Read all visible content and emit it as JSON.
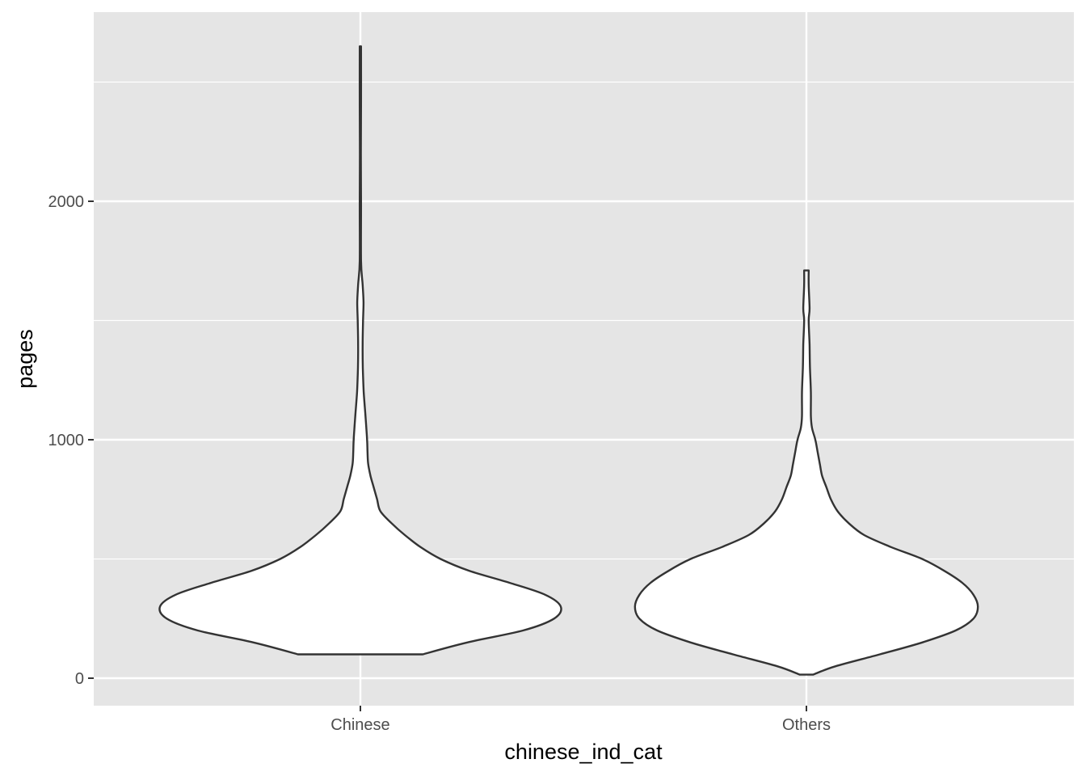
{
  "chart_data": {
    "type": "violin",
    "xlabel": "chinese_ind_cat",
    "ylabel": "pages",
    "categories": [
      "Chinese",
      "Others"
    ],
    "ylim": [
      -110,
      2800
    ],
    "y_ticks": [
      0,
      1000,
      2000
    ],
    "y_tick_labels": [
      "0",
      "1000",
      "2000"
    ],
    "y_minor_gridlines": [
      500,
      1500,
      2500
    ],
    "grid": true,
    "panel_color": "#e5e5e5",
    "grid_color": "#ffffff",
    "violin_fill": "#ffffff",
    "violin_stroke": "#333333",
    "series": [
      {
        "category": "Chinese",
        "min": 100,
        "max": 2650,
        "density_profile": [
          [
            100,
            0.28
          ],
          [
            150,
            0.48
          ],
          [
            200,
            0.73
          ],
          [
            250,
            0.87
          ],
          [
            300,
            0.9
          ],
          [
            350,
            0.83
          ],
          [
            400,
            0.67
          ],
          [
            450,
            0.49
          ],
          [
            500,
            0.36
          ],
          [
            550,
            0.27
          ],
          [
            600,
            0.2
          ],
          [
            650,
            0.14
          ],
          [
            700,
            0.09
          ],
          [
            750,
            0.075
          ],
          [
            800,
            0.06
          ],
          [
            850,
            0.045
          ],
          [
            900,
            0.035
          ],
          [
            950,
            0.032
          ],
          [
            1000,
            0.03
          ],
          [
            1100,
            0.023
          ],
          [
            1200,
            0.015
          ],
          [
            1300,
            0.011
          ],
          [
            1400,
            0.01
          ],
          [
            1500,
            0.012
          ],
          [
            1575,
            0.014
          ],
          [
            1650,
            0.01
          ],
          [
            1750,
            0.003
          ],
          [
            2000,
            0.003
          ],
          [
            2200,
            0.002
          ],
          [
            2400,
            0.003
          ],
          [
            2650,
            0.003
          ]
        ]
      },
      {
        "category": "Others",
        "min": 15,
        "max": 1710,
        "density_profile": [
          [
            15,
            0.03
          ],
          [
            50,
            0.13
          ],
          [
            100,
            0.33
          ],
          [
            150,
            0.52
          ],
          [
            200,
            0.67
          ],
          [
            250,
            0.75
          ],
          [
            300,
            0.77
          ],
          [
            350,
            0.75
          ],
          [
            400,
            0.7
          ],
          [
            450,
            0.62
          ],
          [
            500,
            0.52
          ],
          [
            550,
            0.38
          ],
          [
            600,
            0.26
          ],
          [
            650,
            0.19
          ],
          [
            700,
            0.14
          ],
          [
            750,
            0.11
          ],
          [
            800,
            0.09
          ],
          [
            850,
            0.07
          ],
          [
            900,
            0.06
          ],
          [
            950,
            0.05
          ],
          [
            1000,
            0.04
          ],
          [
            1050,
            0.025
          ],
          [
            1100,
            0.02
          ],
          [
            1200,
            0.02
          ],
          [
            1300,
            0.016
          ],
          [
            1400,
            0.014
          ],
          [
            1500,
            0.01
          ],
          [
            1550,
            0.014
          ],
          [
            1650,
            0.01
          ],
          [
            1710,
            0.01
          ]
        ]
      }
    ]
  }
}
